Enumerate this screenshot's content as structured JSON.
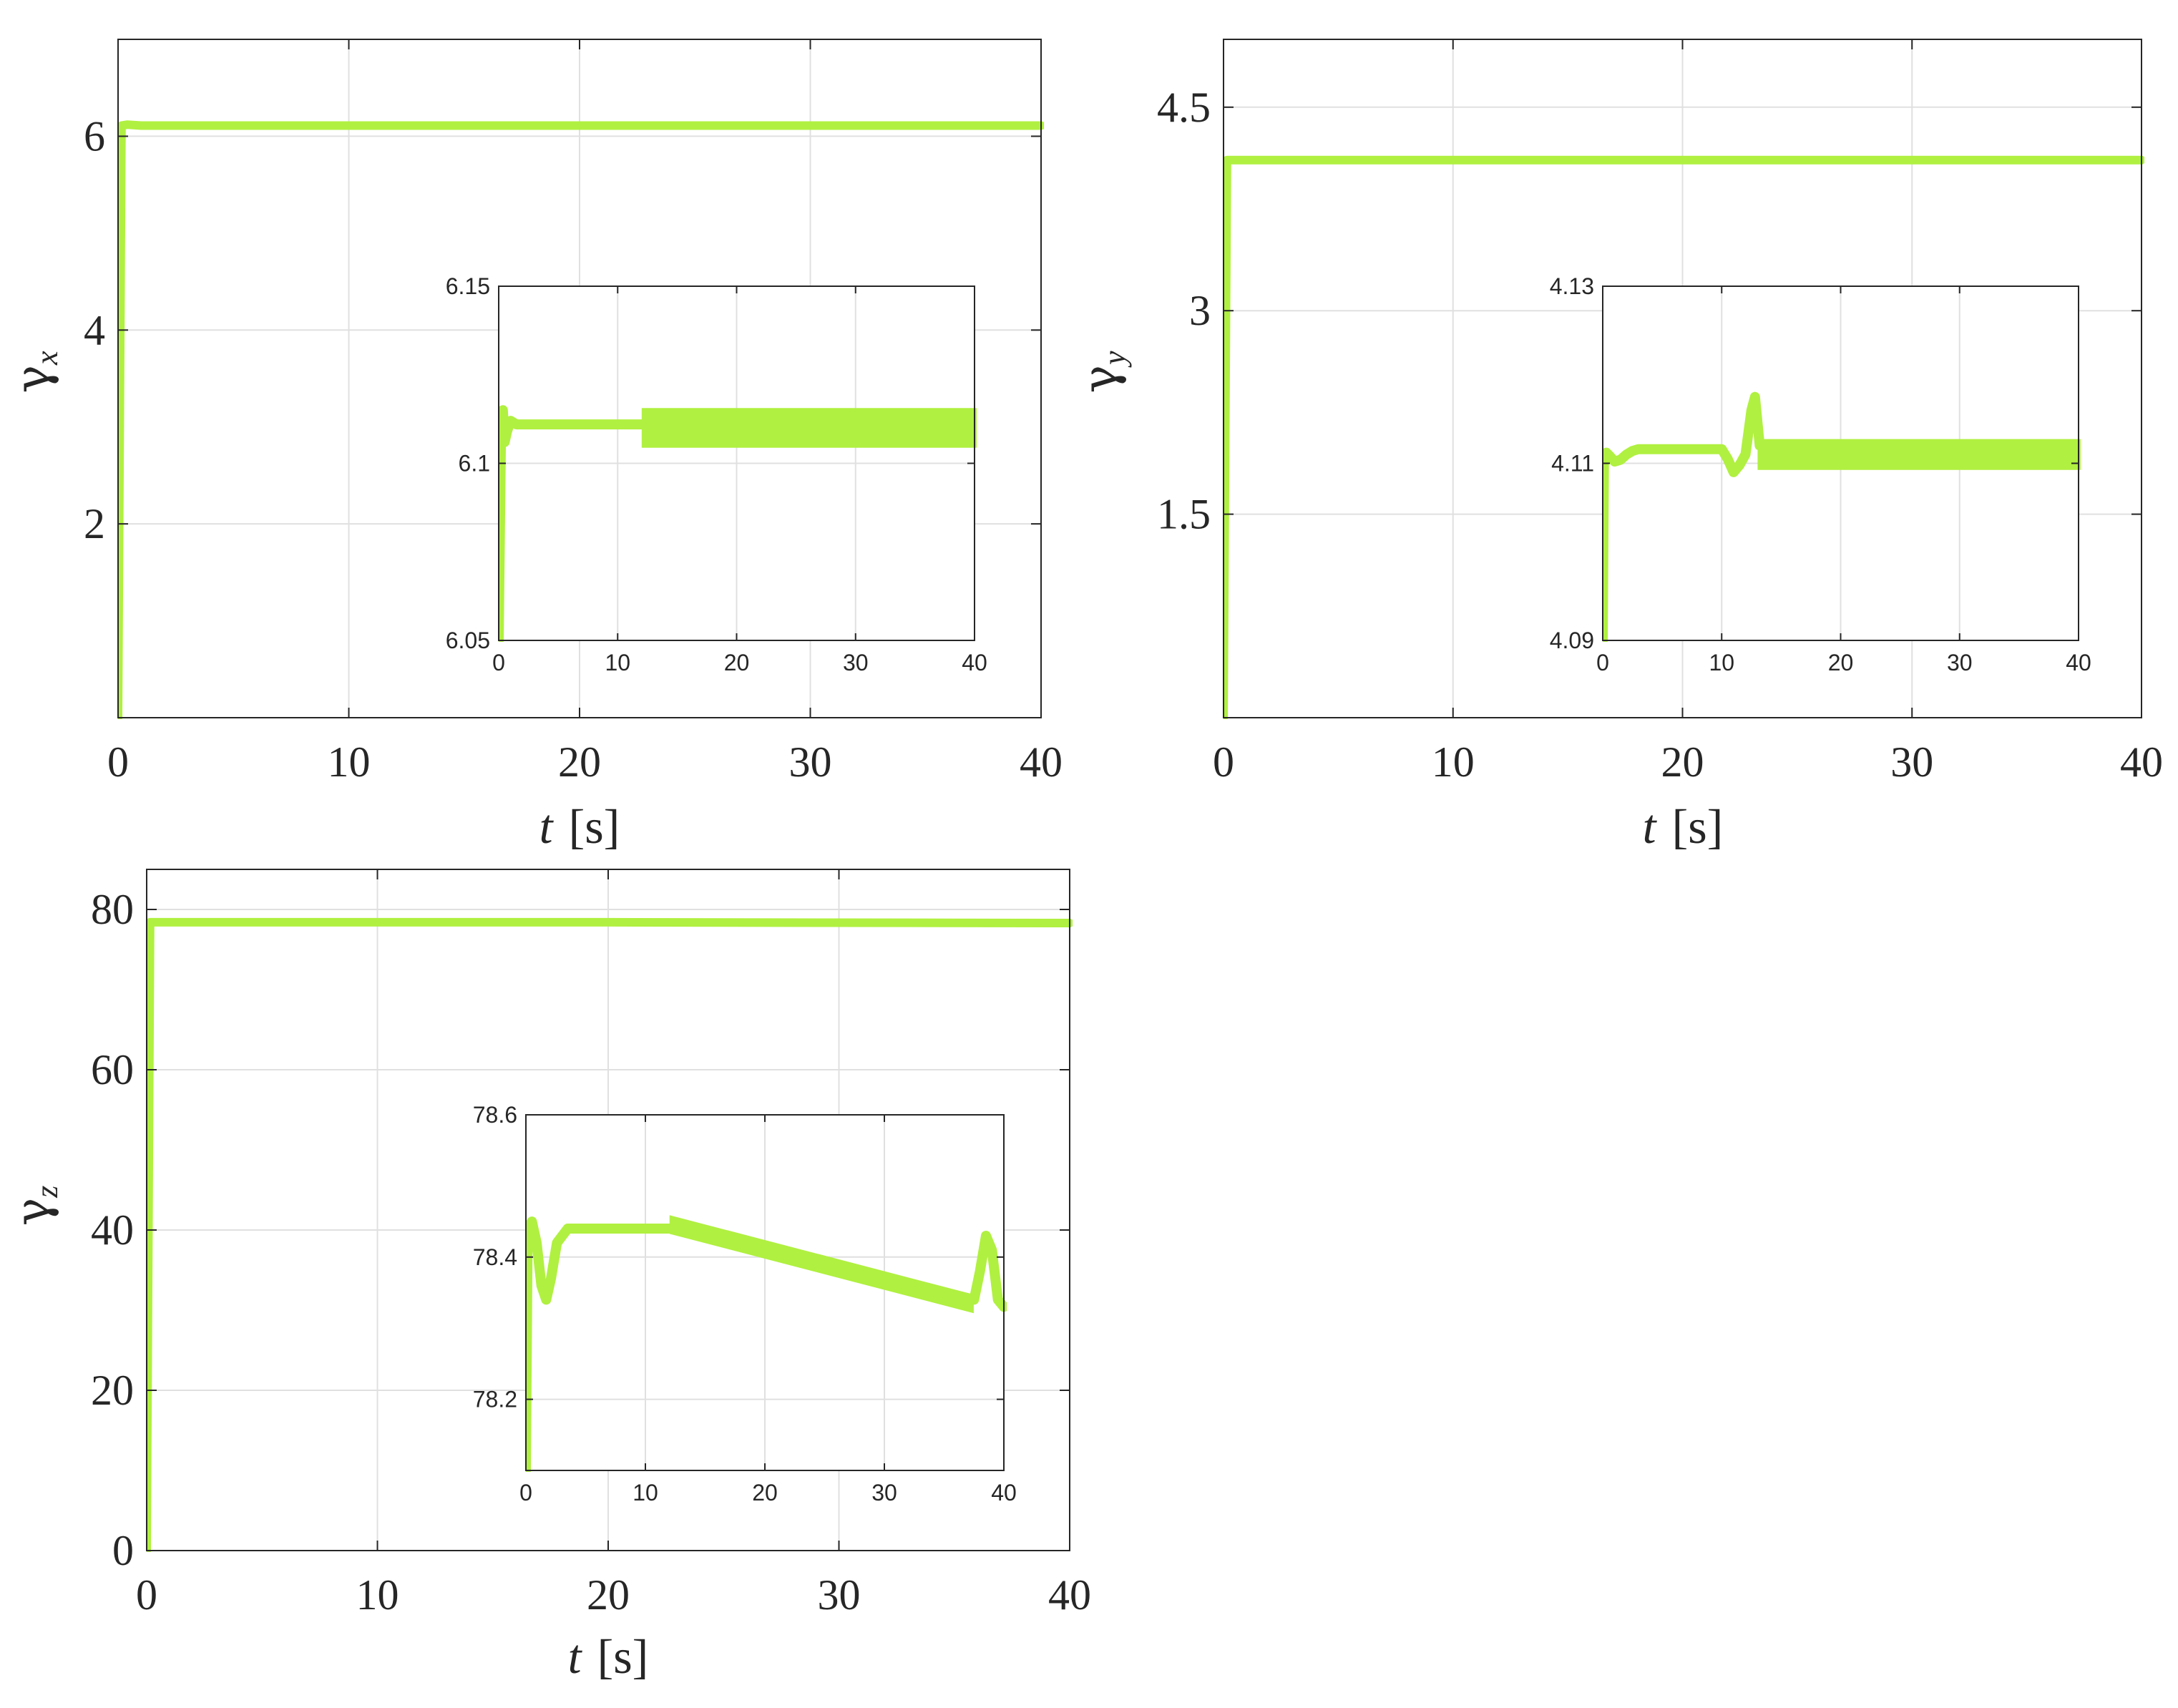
{
  "colors": {
    "series": "#b0f040",
    "grid": "#e0e0e0",
    "axis": "#262626"
  },
  "chart_data": [
    {
      "type": "line",
      "xlabel_var": "t",
      "xlabel_unit": "[s]",
      "ylabel_sym": "γ",
      "ylabel_sub": "x",
      "xlim": [
        0,
        40
      ],
      "ylim": [
        0,
        7
      ],
      "xticks": [
        0,
        10,
        20,
        30,
        40
      ],
      "yticks": [
        2,
        4,
        6
      ],
      "ytick_labels": [
        "2",
        "4",
        "6"
      ],
      "grid": true,
      "series": [
        {
          "x": [
            0,
            0.15,
            0.4,
            1,
            5,
            10,
            20,
            30,
            40
          ],
          "y": [
            0,
            6.11,
            6.12,
            6.11,
            6.11,
            6.11,
            6.11,
            6.11,
            6.11
          ]
        }
      ],
      "inset": {
        "xlim": [
          0,
          40
        ],
        "ylim": [
          6.05,
          6.15
        ],
        "xticks": [
          0,
          10,
          20,
          30,
          40
        ],
        "yticks": [
          6.05,
          6.1,
          6.15
        ],
        "ytick_labels": [
          "6.05",
          "6.1",
          "6.15"
        ],
        "series": [
          {
            "x": [
              0,
              0.2,
              0.35,
              0.5,
              0.7,
              1.0,
              1.5,
              2.5,
              5,
              8,
              10,
              12
            ],
            "y": [
              6.05,
              6.11,
              6.115,
              6.106,
              6.109,
              6.112,
              6.111,
              6.111,
              6.111,
              6.111,
              6.111,
              6.111
            ]
          }
        ],
        "band": {
          "x": [
            12.2,
            40
          ],
          "ylow": 6.105,
          "yhigh": 6.115
        }
      }
    },
    {
      "type": "line",
      "xlabel_var": "t",
      "xlabel_unit": "[s]",
      "ylabel_sym": "γ",
      "ylabel_sub": "y",
      "xlim": [
        0,
        40
      ],
      "ylim": [
        0,
        5
      ],
      "xticks": [
        0,
        10,
        20,
        30,
        40
      ],
      "yticks": [
        1.5,
        3,
        4.5
      ],
      "ytick_labels": [
        "1.5",
        "3",
        "4.5"
      ],
      "grid": true,
      "series": [
        {
          "x": [
            0,
            0.15,
            0.4,
            1,
            5,
            10,
            20,
            30,
            40
          ],
          "y": [
            0,
            4.11,
            4.11,
            4.11,
            4.11,
            4.11,
            4.11,
            4.11,
            4.11
          ]
        }
      ],
      "inset": {
        "xlim": [
          0,
          40
        ],
        "ylim": [
          4.09,
          4.13
        ],
        "xticks": [
          0,
          10,
          20,
          30,
          40
        ],
        "yticks": [
          4.09,
          4.11,
          4.13
        ],
        "ytick_labels": [
          "4.09",
          "4.11",
          "4.13"
        ],
        "series": [
          {
            "x": [
              0,
              0.1,
              0.3,
              0.6,
              1.0,
              1.5,
              2.0,
              2.5,
              3.0,
              4.0,
              6,
              8,
              10,
              10.5,
              11,
              11.5,
              12,
              12.5,
              12.8,
              13.2
            ],
            "y": [
              4.09,
              4.1105,
              4.1112,
              4.1108,
              4.1102,
              4.1104,
              4.111,
              4.1114,
              4.1116,
              4.1116,
              4.1116,
              4.1116,
              4.1116,
              4.1105,
              4.109,
              4.1098,
              4.111,
              4.116,
              4.1175,
              4.112
            ]
          }
        ],
        "band": {
          "x": [
            13.2,
            40
          ],
          "ylow": 4.1095,
          "yhigh": 4.1125
        }
      }
    },
    {
      "type": "line",
      "xlabel_var": "t",
      "xlabel_unit": "[s]",
      "ylabel_sym": "γ",
      "ylabel_sub": "z",
      "xlim": [
        0,
        40
      ],
      "ylim": [
        0,
        85
      ],
      "xticks": [
        0,
        10,
        20,
        30,
        40
      ],
      "yticks": [
        0,
        20,
        40,
        60,
        80
      ],
      "ytick_labels": [
        "0",
        "20",
        "40",
        "60",
        "80"
      ],
      "grid": true,
      "series": [
        {
          "x": [
            0,
            0.15,
            0.4,
            1,
            5,
            10,
            20,
            30,
            40
          ],
          "y": [
            0,
            78.4,
            78.4,
            78.4,
            78.4,
            78.4,
            78.4,
            78.35,
            78.3
          ]
        }
      ],
      "inset": {
        "xlim": [
          0,
          40
        ],
        "ylim": [
          78.1,
          78.6
        ],
        "xticks": [
          0,
          10,
          20,
          30,
          40
        ],
        "yticks": [
          78.2,
          78.4,
          78.6
        ],
        "ytick_labels": [
          "78.2",
          "78.4",
          "78.6"
        ],
        "series": [
          {
            "x": [
              0,
              0.15,
              0.5,
              0.9,
              1.3,
              1.7,
              2.1,
              2.6,
              3.5,
              5,
              8,
              12,
              12.5,
              20,
              30,
              37.5,
              38,
              38.5,
              39,
              39.5,
              40
            ],
            "y": [
              78.1,
              78.44,
              78.45,
              78.42,
              78.36,
              78.34,
              78.37,
              78.42,
              78.44,
              78.44,
              78.44,
              78.44,
              78.44,
              78.41,
              78.37,
              78.34,
              78.38,
              78.43,
              78.41,
              78.34,
              78.33
            ]
          }
        ],
        "band": {
          "x": [
            12.2,
            37.3
          ],
          "ylow": [
            78.435,
            78.325
          ],
          "yhigh": [
            78.455,
            78.345
          ]
        }
      }
    }
  ]
}
